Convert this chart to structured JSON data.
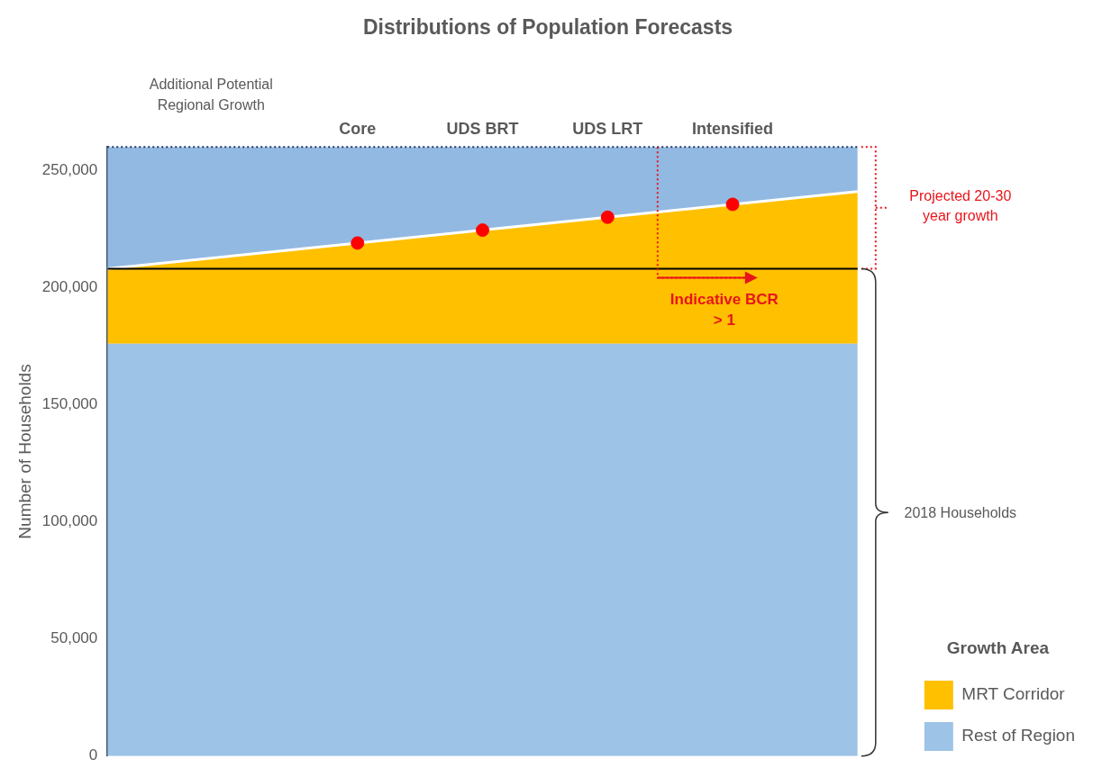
{
  "chart_data": {
    "type": "area",
    "title": "Distributions of Population Forecasts",
    "ylabel": "Number of Households",
    "legend_title": "Growth Area",
    "stacked": true,
    "categories": [
      null,
      null,
      "Core",
      "UDS BRT",
      "UDS LRT",
      "Intensified",
      null
    ],
    "series": [
      {
        "name": "Rest of Region",
        "color": "#9dc3e6",
        "values": [
          176000,
          176000,
          176000,
          176000,
          176000,
          176000,
          176000
        ]
      },
      {
        "name": "MRT Corridor",
        "color": "#ffc000",
        "values": [
          32000,
          37500,
          43000,
          48500,
          54000,
          59500,
          65000
        ]
      },
      {
        "color": "#92b9e2",
        "values": [
          52000,
          46500,
          41000,
          35500,
          30000,
          24500,
          19000
        ]
      },
      {
        "type": "scatter",
        "color": "#ff0000",
        "x": [
          "Core",
          "UDS BRT",
          "UDS LRT",
          "Intensified"
        ],
        "values": [
          219000,
          224500,
          230000,
          235500
        ]
      }
    ],
    "ylim": [
      0,
      260000
    ],
    "yticks": [
      0,
      {
        "value": 50000,
        "label": "50,000"
      },
      {
        "value": 100000,
        "label": "100,000"
      },
      {
        "value": 150000,
        "label": "150,000"
      },
      {
        "value": 200000,
        "label": "200,000"
      },
      {
        "value": 250000,
        "label": "250,000"
      }
    ],
    "grid": false,
    "legend": "bottom right",
    "ref_lines": [
      {
        "axis": "y",
        "value": 260000,
        "color": "#1f3864",
        "line_style": "dotted"
      },
      {
        "axis": "y",
        "value": 208000,
        "color": "#000000",
        "line_style": "solid"
      }
    ],
    "annotations": [
      "Additional Potential Regional Growth",
      "Projected 20-30 year growth",
      {
        "text": "Indicative BCR > 1",
        "y": 208000
      },
      "2018 Households"
    ]
  }
}
